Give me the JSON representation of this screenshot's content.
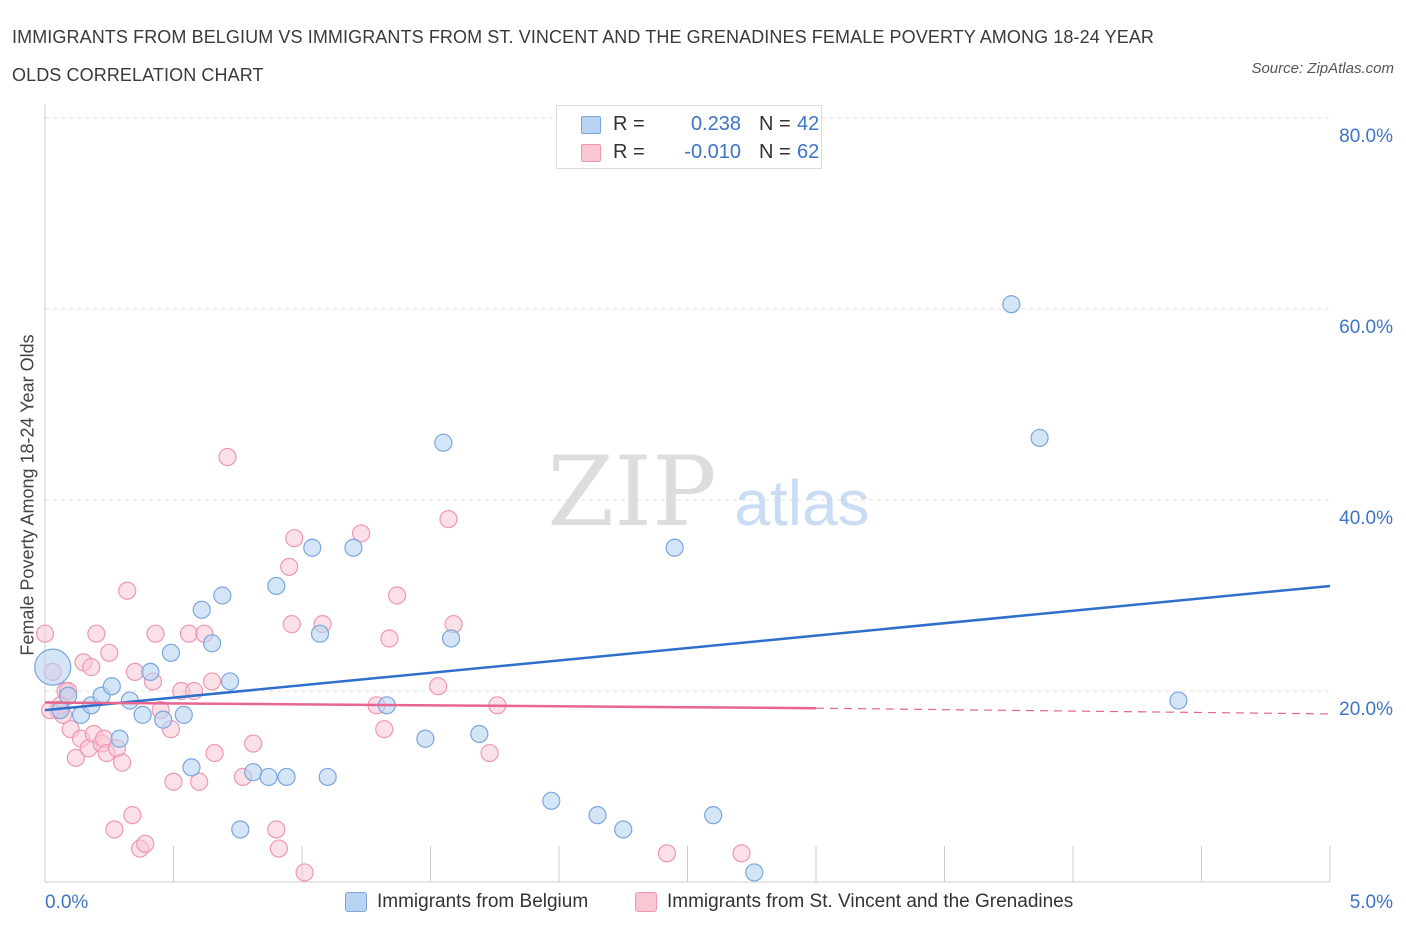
{
  "title": "IMMIGRANTS FROM BELGIUM VS IMMIGRANTS FROM ST. VINCENT AND THE GRENADINES FEMALE POVERTY AMONG 18-24 YEAR OLDS CORRELATION CHART",
  "source": "Source: ZipAtlas.com",
  "watermark": {
    "zip": "ZIP",
    "atlas": "atlas"
  },
  "legend": {
    "belgium": {
      "r_label": "R =",
      "r_value": "0.238",
      "n_label": "N =",
      "n_value": "42"
    },
    "stvincent": {
      "r_label": "R =",
      "r_value": "-0.010",
      "n_label": "N =",
      "n_value": "62"
    }
  },
  "colors": {
    "belgium_fill": "#b9d3f3",
    "belgium_stroke": "#7aa6dd",
    "belgium_line": "#2f6fcc",
    "stvincent_fill": "#f9c6d4",
    "stvincent_stroke": "#ee98b2",
    "stvincent_line": "#e8658f",
    "axis_text": "#3d74c8",
    "grid": "#e0e0e0"
  },
  "chart_data": {
    "type": "scatter",
    "title": "IMMIGRANTS FROM BELGIUM VS IMMIGRANTS FROM ST. VINCENT AND THE GRENADINES FEMALE POVERTY AMONG 18-24 YEAR OLDS CORRELATION CHART",
    "xlabel": "",
    "ylabel": "Female Poverty Among 18-24 Year Olds",
    "xlim": [
      0,
      5
    ],
    "ylim": [
      0,
      80
    ],
    "x_tick_labels": [
      "0.0%",
      "5.0%"
    ],
    "y_ticks": [
      20,
      40,
      60,
      80
    ],
    "y_tick_labels": [
      "20.0%",
      "40.0%",
      "60.0%",
      "80.0%"
    ],
    "grid": true,
    "legend_position": "top-center",
    "series": [
      {
        "name": "Immigrants from Belgium",
        "r": 0.238,
        "n": 42,
        "trend": {
          "x": [
            0,
            5
          ],
          "y": [
            18.0,
            31.0
          ]
        },
        "points": [
          {
            "x": 0.03,
            "y": 22.5,
            "big": true
          },
          {
            "x": 0.09,
            "y": 19.5
          },
          {
            "x": 0.14,
            "y": 17.5
          },
          {
            "x": 0.18,
            "y": 18.5
          },
          {
            "x": 0.22,
            "y": 19.5
          },
          {
            "x": 0.26,
            "y": 20.5
          },
          {
            "x": 0.29,
            "y": 15.0
          },
          {
            "x": 0.33,
            "y": 19.0
          },
          {
            "x": 0.38,
            "y": 17.5
          },
          {
            "x": 0.41,
            "y": 22.0
          },
          {
            "x": 0.46,
            "y": 17.0
          },
          {
            "x": 0.49,
            "y": 24.0
          },
          {
            "x": 0.54,
            "y": 17.5
          },
          {
            "x": 0.57,
            "y": 12.0
          },
          {
            "x": 0.61,
            "y": 28.5
          },
          {
            "x": 0.65,
            "y": 25.0
          },
          {
            "x": 0.69,
            "y": 30.0
          },
          {
            "x": 0.72,
            "y": 21.0
          },
          {
            "x": 0.76,
            "y": 5.5
          },
          {
            "x": 0.81,
            "y": 11.5
          },
          {
            "x": 0.87,
            "y": 11.0
          },
          {
            "x": 0.9,
            "y": 31.0
          },
          {
            "x": 0.94,
            "y": 11.0
          },
          {
            "x": 1.04,
            "y": 35.0
          },
          {
            "x": 1.07,
            "y": 26.0
          },
          {
            "x": 1.1,
            "y": 11.0
          },
          {
            "x": 1.2,
            "y": 35.0
          },
          {
            "x": 1.33,
            "y": 18.5
          },
          {
            "x": 1.48,
            "y": 15.0
          },
          {
            "x": 1.55,
            "y": 46.0
          },
          {
            "x": 1.58,
            "y": 25.5
          },
          {
            "x": 1.69,
            "y": 15.5
          },
          {
            "x": 1.97,
            "y": 8.5
          },
          {
            "x": 2.15,
            "y": 7.0
          },
          {
            "x": 2.25,
            "y": 5.5
          },
          {
            "x": 2.45,
            "y": 35.0
          },
          {
            "x": 2.6,
            "y": 7.0
          },
          {
            "x": 2.76,
            "y": 1.0
          },
          {
            "x": 3.76,
            "y": 60.5
          },
          {
            "x": 3.87,
            "y": 46.5
          },
          {
            "x": 4.41,
            "y": 19.0
          },
          {
            "x": 0.06,
            "y": 18.0
          }
        ]
      },
      {
        "name": "Immigrants from St. Vincent and the Grenadines",
        "r": -0.01,
        "n": 62,
        "trend": {
          "x": [
            0,
            3.0
          ],
          "y": [
            18.8,
            18.2
          ]
        },
        "trend_dashed": {
          "x": [
            3.0,
            5
          ],
          "y": [
            18.2,
            17.6
          ]
        },
        "points": [
          {
            "x": 0.0,
            "y": 26.0
          },
          {
            "x": 0.03,
            "y": 22.0
          },
          {
            "x": 0.05,
            "y": 18.0
          },
          {
            "x": 0.07,
            "y": 17.5
          },
          {
            "x": 0.08,
            "y": 20.0
          },
          {
            "x": 0.1,
            "y": 16.0
          },
          {
            "x": 0.12,
            "y": 13.0
          },
          {
            "x": 0.14,
            "y": 15.0
          },
          {
            "x": 0.15,
            "y": 23.0
          },
          {
            "x": 0.17,
            "y": 14.0
          },
          {
            "x": 0.18,
            "y": 22.5
          },
          {
            "x": 0.19,
            "y": 15.5
          },
          {
            "x": 0.2,
            "y": 26.0
          },
          {
            "x": 0.22,
            "y": 14.5
          },
          {
            "x": 0.23,
            "y": 15.0
          },
          {
            "x": 0.24,
            "y": 13.5
          },
          {
            "x": 0.25,
            "y": 24.0
          },
          {
            "x": 0.27,
            "y": 5.5
          },
          {
            "x": 0.28,
            "y": 14.0
          },
          {
            "x": 0.3,
            "y": 12.5
          },
          {
            "x": 0.32,
            "y": 30.5
          },
          {
            "x": 0.34,
            "y": 7.0
          },
          {
            "x": 0.35,
            "y": 22.0
          },
          {
            "x": 0.37,
            "y": 3.5
          },
          {
            "x": 0.39,
            "y": 4.0
          },
          {
            "x": 0.42,
            "y": 21.0
          },
          {
            "x": 0.43,
            "y": 26.0
          },
          {
            "x": 0.45,
            "y": 18.0
          },
          {
            "x": 0.49,
            "y": 16.0
          },
          {
            "x": 0.5,
            "y": 10.5
          },
          {
            "x": 0.53,
            "y": 20.0
          },
          {
            "x": 0.56,
            "y": 26.0
          },
          {
            "x": 0.58,
            "y": 20.0
          },
          {
            "x": 0.6,
            "y": 10.5
          },
          {
            "x": 0.62,
            "y": 26.0
          },
          {
            "x": 0.65,
            "y": 21.0
          },
          {
            "x": 0.66,
            "y": 13.5
          },
          {
            "x": 0.71,
            "y": 44.5
          },
          {
            "x": 0.77,
            "y": 11.0
          },
          {
            "x": 0.81,
            "y": 14.5
          },
          {
            "x": 0.9,
            "y": 5.5
          },
          {
            "x": 0.91,
            "y": 3.5
          },
          {
            "x": 0.95,
            "y": 33.0
          },
          {
            "x": 0.96,
            "y": 27.0
          },
          {
            "x": 0.97,
            "y": 36.0
          },
          {
            "x": 1.01,
            "y": 1.0
          },
          {
            "x": 1.08,
            "y": 27.0
          },
          {
            "x": 1.23,
            "y": 36.5
          },
          {
            "x": 1.29,
            "y": 18.5
          },
          {
            "x": 1.32,
            "y": 16.0
          },
          {
            "x": 1.34,
            "y": 25.5
          },
          {
            "x": 1.37,
            "y": 30.0
          },
          {
            "x": 1.53,
            "y": 20.5
          },
          {
            "x": 1.57,
            "y": 38.0
          },
          {
            "x": 1.59,
            "y": 27.0
          },
          {
            "x": 1.73,
            "y": 13.5
          },
          {
            "x": 1.76,
            "y": 18.5
          },
          {
            "x": 2.42,
            "y": 3.0
          },
          {
            "x": 2.71,
            "y": 3.0
          },
          {
            "x": 0.06,
            "y": 18.5
          },
          {
            "x": 0.09,
            "y": 20.0
          },
          {
            "x": 0.02,
            "y": 18.0
          }
        ]
      }
    ]
  },
  "bottom_legend": {
    "belgium": "Immigrants from Belgium",
    "stvincent": "Immigrants from St. Vincent and the Grenadines"
  }
}
